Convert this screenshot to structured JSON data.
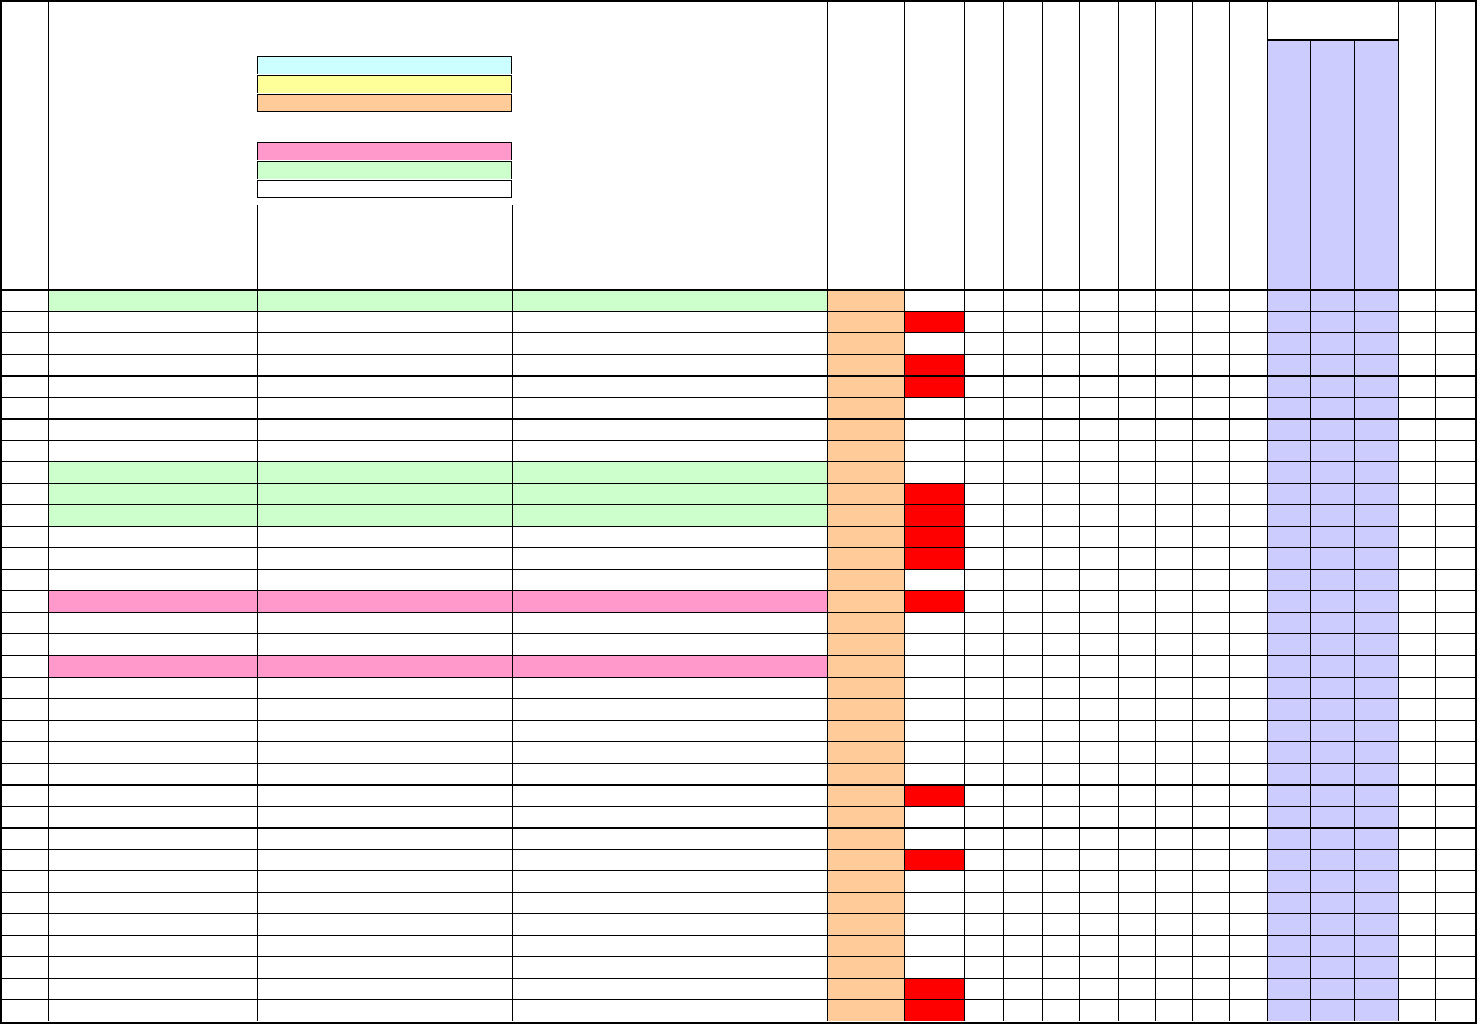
{
  "colors": {
    "green": "#ccffcc",
    "pink": "#ff99cc",
    "orange": "#ffcc99",
    "red": "#ff0000",
    "lavender": "#ccccff",
    "cyan": "#ccffff",
    "yellow": "#ffff99",
    "white": "#ffffff",
    "grid": "#000000"
  },
  "legend": [
    {
      "label": "",
      "color": "cyan"
    },
    {
      "label": "",
      "color": "yellow"
    },
    {
      "label": "",
      "color": "orange"
    },
    {
      "label": "",
      "color": "pink"
    },
    {
      "label": "",
      "color": "green"
    },
    {
      "label": "",
      "color": "white"
    }
  ],
  "rows": [
    {
      "fill": "green",
      "flag": false
    },
    {
      "fill": "white",
      "flag": true
    },
    {
      "fill": "white",
      "flag": false
    },
    {
      "fill": "white",
      "flag": true
    },
    {
      "fill": "white",
      "flag": true
    },
    {
      "fill": "white",
      "flag": false
    },
    {
      "fill": "white",
      "flag": false
    },
    {
      "fill": "white",
      "flag": false
    },
    {
      "fill": "green",
      "flag": false
    },
    {
      "fill": "green",
      "flag": true
    },
    {
      "fill": "green",
      "flag": true
    },
    {
      "fill": "white",
      "flag": true
    },
    {
      "fill": "white",
      "flag": true
    },
    {
      "fill": "white",
      "flag": false
    },
    {
      "fill": "pink",
      "flag": true
    },
    {
      "fill": "white",
      "flag": false
    },
    {
      "fill": "white",
      "flag": false
    },
    {
      "fill": "pink",
      "flag": false
    },
    {
      "fill": "white",
      "flag": false
    },
    {
      "fill": "white",
      "flag": false
    },
    {
      "fill": "white",
      "flag": false
    },
    {
      "fill": "white",
      "flag": false
    },
    {
      "fill": "white",
      "flag": false
    },
    {
      "fill": "white",
      "flag": true
    },
    {
      "fill": "white",
      "flag": false
    },
    {
      "fill": "white",
      "flag": false
    },
    {
      "fill": "white",
      "flag": true
    },
    {
      "fill": "white",
      "flag": false
    },
    {
      "fill": "white",
      "flag": false
    },
    {
      "fill": "white",
      "flag": false
    },
    {
      "fill": "white",
      "flag": false
    },
    {
      "fill": "white",
      "flag": false
    },
    {
      "fill": "white",
      "flag": true
    },
    {
      "fill": "white",
      "flag": true
    }
  ]
}
